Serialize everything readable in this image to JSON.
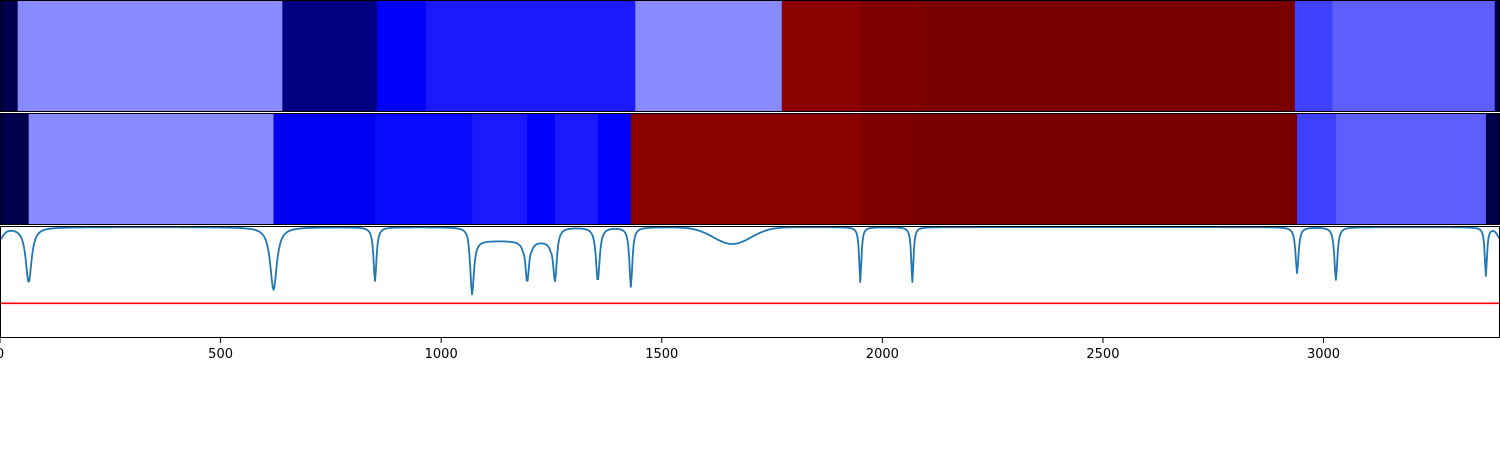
{
  "chart_data": [
    {
      "type": "heatmap",
      "name": "top-segmentation-strip",
      "xlim": [
        0,
        3400
      ],
      "segments": [
        {
          "x0": 0,
          "x1": 40,
          "color": "#00004d"
        },
        {
          "x0": 40,
          "x1": 640,
          "color": "#8a8aff"
        },
        {
          "x0": 640,
          "x1": 855,
          "color": "#000080"
        },
        {
          "x0": 855,
          "x1": 965,
          "color": "#0000ff"
        },
        {
          "x0": 965,
          "x1": 1440,
          "color": "#1a1aff"
        },
        {
          "x0": 1440,
          "x1": 1772,
          "color": "#8a8aff"
        },
        {
          "x0": 1772,
          "x1": 1945,
          "color": "#8b0000"
        },
        {
          "x0": 1945,
          "x1": 2090,
          "color": "#800000"
        },
        {
          "x0": 2090,
          "x1": 2935,
          "color": "#7a0000"
        },
        {
          "x0": 2935,
          "x1": 3020,
          "color": "#4040ff"
        },
        {
          "x0": 3020,
          "x1": 3388,
          "color": "#5e5eff"
        },
        {
          "x0": 3388,
          "x1": 3400,
          "color": "#00004d"
        }
      ]
    },
    {
      "type": "heatmap",
      "name": "middle-segmentation-strip",
      "xlim": [
        0,
        3400
      ],
      "segments": [
        {
          "x0": 0,
          "x1": 65,
          "color": "#00004d"
        },
        {
          "x0": 65,
          "x1": 620,
          "color": "#8a8aff"
        },
        {
          "x0": 620,
          "x1": 850,
          "color": "#0000f0"
        },
        {
          "x0": 850,
          "x1": 1070,
          "color": "#0a0aff"
        },
        {
          "x0": 1070,
          "x1": 1195,
          "color": "#1a1aff"
        },
        {
          "x0": 1195,
          "x1": 1258,
          "color": "#0000ff"
        },
        {
          "x0": 1258,
          "x1": 1355,
          "color": "#1a1aff"
        },
        {
          "x0": 1355,
          "x1": 1430,
          "color": "#0000ff"
        },
        {
          "x0": 1430,
          "x1": 1950,
          "color": "#8b0000"
        },
        {
          "x0": 1950,
          "x1": 2068,
          "color": "#800000"
        },
        {
          "x0": 2068,
          "x1": 2940,
          "color": "#7a0000"
        },
        {
          "x0": 2940,
          "x1": 3028,
          "color": "#4040ff"
        },
        {
          "x0": 3028,
          "x1": 3368,
          "color": "#5e5eff"
        },
        {
          "x0": 3368,
          "x1": 3400,
          "color": "#00004d"
        }
      ]
    },
    {
      "type": "line",
      "name": "signal-plot",
      "xlim": [
        0,
        3400
      ],
      "ylim": [
        0,
        1
      ],
      "grid": false,
      "x_ticks": [
        0,
        500,
        1000,
        1500,
        2000,
        2500,
        3000
      ],
      "x_tick_labels": [
        "0",
        "500",
        "1000",
        "1500",
        "2000",
        "2500",
        "3000"
      ],
      "series": [
        {
          "color": "#1f77b4",
          "baseline": 0.99,
          "dips": [
            {
              "center": 0,
              "depth": 0.1,
              "width": 10
            },
            {
              "center": 65,
              "depth": 0.49,
              "width": 8
            },
            {
              "center": 620,
              "depth": 0.56,
              "width": 9
            },
            {
              "center": 850,
              "depth": 0.48,
              "width": 4
            },
            {
              "center": 1070,
              "depth": 0.48,
              "width": 5
            },
            {
              "center": 1195,
              "depth": 0.48,
              "width": 5
            },
            {
              "center": 1258,
              "depth": 0.48,
              "width": 5
            },
            {
              "center": 1355,
              "depth": 0.48,
              "width": 5
            },
            {
              "center": 1430,
              "depth": 0.53,
              "width": 4
            },
            {
              "center": 1950,
              "depth": 0.49,
              "width": 3
            },
            {
              "center": 2068,
              "depth": 0.49,
              "width": 3
            },
            {
              "center": 2940,
              "depth": 0.41,
              "width": 4
            },
            {
              "center": 3028,
              "depth": 0.47,
              "width": 4
            },
            {
              "center": 3368,
              "depth": 0.43,
              "width": 3
            },
            {
              "center": 3400,
              "depth": 0.1,
              "width": 8
            }
          ],
          "plateaus": [
            {
              "x0": 1060,
              "x1": 1195,
              "depth": 0.12
            },
            {
              "x0": 1195,
              "x1": 1258,
              "depth": 0.12
            },
            {
              "x0": 1558,
              "x1": 1760,
              "depth": 0.15,
              "shape": "bump",
              "center": 1660,
              "width": 60
            }
          ]
        }
      ],
      "threshold_line": {
        "y": 0.31,
        "color": "#ff0000"
      }
    }
  ]
}
